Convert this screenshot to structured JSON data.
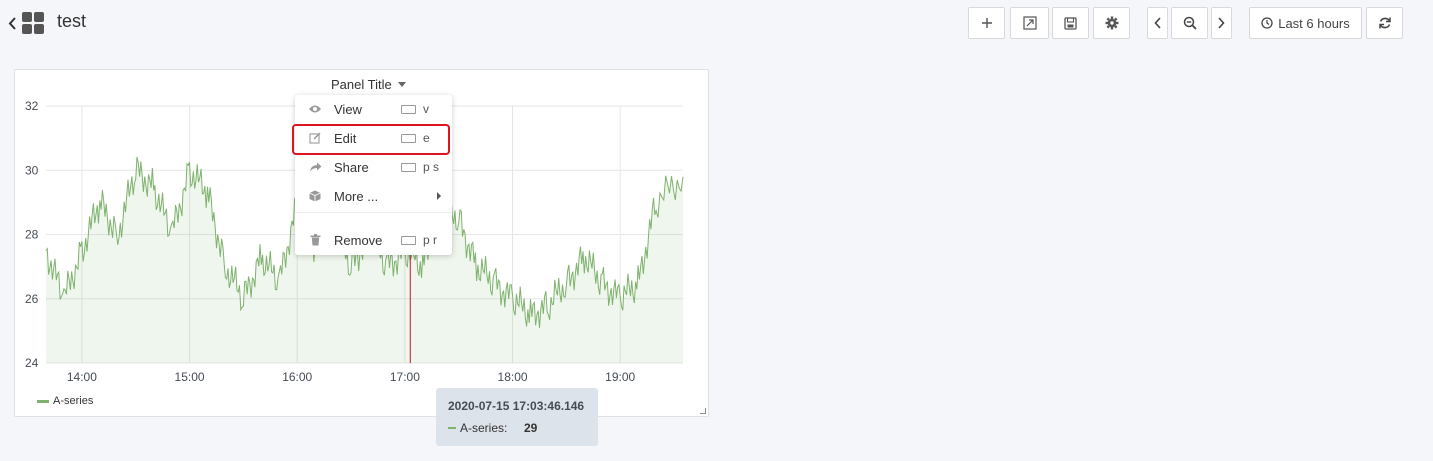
{
  "header": {
    "title": "test",
    "time_range_label": "Last 6 hours"
  },
  "toolbar": {
    "icons": [
      "plus-icon",
      "share-dashboard-icon",
      "save-icon",
      "gear-icon",
      "chevron-left-icon",
      "zoom-out-icon",
      "chevron-right-icon",
      "clock-icon",
      "refresh-icon"
    ]
  },
  "panel": {
    "title": "Panel Title",
    "legend_label": "A-series"
  },
  "panel_menu": {
    "items": [
      {
        "label": "View",
        "shortcut": "v",
        "icon": "eye-icon"
      },
      {
        "label": "Edit",
        "shortcut": "e",
        "icon": "edit-icon"
      },
      {
        "label": "Share",
        "shortcut": "p s",
        "icon": "share-icon"
      },
      {
        "label": "More ...",
        "shortcut": "",
        "icon": "cube-icon"
      },
      {
        "label": "Remove",
        "shortcut": "p r",
        "icon": "trash-icon"
      }
    ],
    "highlighted": "Edit"
  },
  "tooltip": {
    "time": "2020-07-15 17:03:46.146",
    "series": "A-series:",
    "value": "29"
  },
  "colors": {
    "series": "#7eb26d",
    "crosshair": "#c4162a",
    "highlight": "#e0141e"
  },
  "chart_data": {
    "type": "area",
    "title": "Panel Title",
    "x_ticks": [
      "14:00",
      "15:00",
      "16:00",
      "17:00",
      "18:00",
      "19:00"
    ],
    "y_ticks": [
      "24",
      "26",
      "28",
      "30",
      "32"
    ],
    "ylim": [
      24,
      32
    ],
    "x": [
      "13:40",
      "13:50",
      "14:00",
      "14:10",
      "14:20",
      "14:30",
      "14:40",
      "14:50",
      "15:00",
      "15:10",
      "15:20",
      "15:30",
      "15:40",
      "15:50",
      "16:00",
      "16:10",
      "16:20",
      "16:30",
      "16:40",
      "16:50",
      "17:00",
      "17:10",
      "17:20",
      "17:30",
      "17:40",
      "17:50",
      "18:00",
      "18:10",
      "18:20",
      "18:30",
      "18:40",
      "18:50",
      "19:00",
      "19:10",
      "19:20",
      "19:35"
    ],
    "series": [
      {
        "name": "A-series",
        "values": [
          27.5,
          26.0,
          27.5,
          29.0,
          28.0,
          30.0,
          29.5,
          28.0,
          30.0,
          29.3,
          27.0,
          26.0,
          27.3,
          26.5,
          29.0,
          27.5,
          28.5,
          27.0,
          28.0,
          27.0,
          27.5,
          27.0,
          29.0,
          28.5,
          27.0,
          26.5,
          26.0,
          25.5,
          25.8,
          26.5,
          27.3,
          26.5,
          26.0,
          26.5,
          29.0,
          29.8
        ]
      }
    ],
    "crosshair_x": "17:03"
  }
}
